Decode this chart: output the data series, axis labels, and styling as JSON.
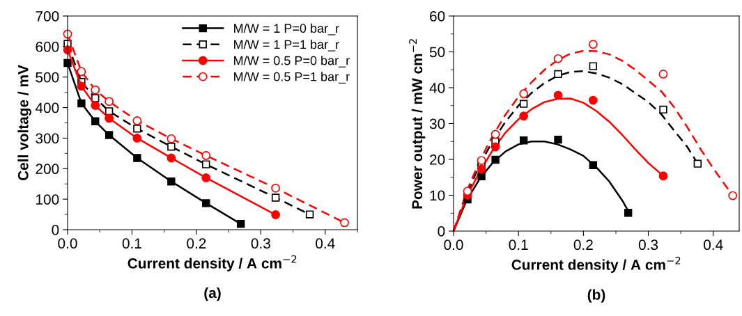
{
  "chart_data": [
    {
      "type": "line",
      "xlabel": "Current density / A cm$^{−2}$",
      "ylabel": "Cell voltage / mV",
      "annotations": [
        "(a)"
      ],
      "xlim": [
        0,
        0.45
      ],
      "ylim": [
        0,
        700
      ],
      "xticks": [
        {
          "value": 0,
          "label": "0.0"
        },
        0.1,
        0.2,
        0.3,
        0.4,
        {
          "value": 0.05,
          "label": null
        },
        {
          "value": 0.15,
          "label": null
        },
        {
          "value": 0.25,
          "label": null
        },
        {
          "value": 0.35,
          "label": null
        },
        {
          "value": 0.45,
          "label": null
        }
      ],
      "yticks": [
        0,
        100,
        200,
        300,
        400,
        500,
        600,
        700,
        {
          "value": 50,
          "label": null
        },
        {
          "value": 150,
          "label": null
        },
        {
          "value": 250,
          "label": null
        },
        {
          "value": 350,
          "label": null
        },
        {
          "value": 450,
          "label": null
        },
        {
          "value": 550,
          "label": null
        },
        {
          "value": 650,
          "label": null
        }
      ],
      "grid": false,
      "legend": "top right",
      "series": [
        {
          "name": "M/W = 1 P=0 bar_r",
          "color": "#000000",
          "marker": "square",
          "line_style": "solid",
          "x": [
            0,
            0.0215,
            0.043,
            0.0645,
            0.108,
            0.161,
            0.215,
            0.269
          ],
          "values": [
            546,
            414,
            355,
            310,
            235,
            158,
            87,
            19
          ]
        },
        {
          "name": "M/W = 1 P=1 bar_r",
          "color": "#000000",
          "marker": "square",
          "line_style": "dashed",
          "x": [
            0,
            0.0215,
            0.043,
            0.0645,
            0.108,
            0.161,
            0.215,
            0.323,
            0.376
          ],
          "values": [
            609,
            484,
            431,
            388,
            331,
            272,
            214,
            105,
            50
          ]
        },
        {
          "name": "M/W = 0.5 P=0 bar_r",
          "color": "#ff0000",
          "marker": "circle",
          "line_style": "solid",
          "x": [
            0,
            0.0215,
            0.043,
            0.0645,
            0.108,
            0.161,
            0.215,
            0.323
          ],
          "values": [
            589,
            470,
            407,
            365,
            300,
            235,
            170,
            49
          ]
        },
        {
          "name": "M/W = 0.5 P=1 bar_r",
          "color": "#ff0000",
          "marker": "circle",
          "line_style": "dashed",
          "x": [
            0,
            0.0215,
            0.043,
            0.0645,
            0.108,
            0.161,
            0.215,
            0.323,
            0.43
          ],
          "values": [
            641,
            518,
            458,
            420,
            357,
            298,
            243,
            136,
            23
          ]
        }
      ]
    },
    {
      "type": "scatter",
      "xlabel": "Current density / A cm$^{−2}$",
      "ylabel": "Power output / mW cm$^{−2}$",
      "annotations": [
        "(b)"
      ],
      "xlim": [
        0,
        0.44
      ],
      "ylim": [
        0,
        60
      ],
      "xticks": [
        {
          "value": 0,
          "label": "0.0"
        },
        0.1,
        0.2,
        0.3,
        0.4,
        {
          "value": 0.05,
          "label": null
        },
        {
          "value": 0.15,
          "label": null
        },
        {
          "value": 0.25,
          "label": null
        },
        {
          "value": 0.35,
          "label": null
        }
      ],
      "yticks": [
        0,
        10,
        20,
        30,
        40,
        50,
        60,
        {
          "value": 5,
          "label": null
        },
        {
          "value": 15,
          "label": null
        },
        {
          "value": 25,
          "label": null
        },
        {
          "value": 35,
          "label": null
        },
        {
          "value": 45,
          "label": null
        },
        {
          "value": 55,
          "label": null
        }
      ],
      "grid": false,
      "series": [
        {
          "type": "line",
          "color": "#000000",
          "marker": "none",
          "line_style": "solid",
          "x": [
            0,
            0.02,
            0.04,
            0.06,
            0.08,
            0.1,
            0.12,
            0.14,
            0.16,
            0.18,
            0.2,
            0.22,
            0.24,
            0.26,
            0.27
          ],
          "values": [
            0,
            8.5,
            14.5,
            19,
            22.2,
            24.2,
            25,
            25,
            24.2,
            22.8,
            21,
            17.8,
            13.8,
            8.5,
            5.3
          ]
        },
        {
          "type": "line",
          "color": "#000000",
          "marker": "none",
          "line_style": "dashed",
          "x": [
            0,
            0.02,
            0.04,
            0.06,
            0.08,
            0.1,
            0.12,
            0.14,
            0.16,
            0.18,
            0.2,
            0.22,
            0.24,
            0.26,
            0.28,
            0.3,
            0.32,
            0.34,
            0.36,
            0.376
          ],
          "values": [
            0,
            10,
            18.5,
            25,
            30.5,
            35,
            38.5,
            41.3,
            43.3,
            44.4,
            44.6,
            44,
            42.8,
            41,
            38.5,
            36,
            32.6,
            28,
            23.5,
            18.8
          ]
        },
        {
          "type": "line",
          "color": "#ff0000",
          "marker": "none",
          "line_style": "solid",
          "x": [
            0,
            0.02,
            0.04,
            0.06,
            0.08,
            0.1,
            0.12,
            0.14,
            0.16,
            0.18,
            0.2,
            0.22,
            0.24,
            0.26,
            0.28,
            0.3,
            0.323
          ],
          "values": [
            0,
            9.5,
            16.5,
            22.5,
            27.5,
            31.2,
            34,
            36,
            36.9,
            37,
            35.8,
            33.5,
            30.5,
            26.8,
            22.8,
            19,
            15.4
          ]
        },
        {
          "type": "line",
          "color": "#ff0000",
          "marker": "none",
          "line_style": "dashed",
          "x": [
            0,
            0.02,
            0.04,
            0.06,
            0.08,
            0.1,
            0.12,
            0.14,
            0.16,
            0.18,
            0.2,
            0.22,
            0.24,
            0.26,
            0.28,
            0.3,
            0.32,
            0.34,
            0.36,
            0.38,
            0.4,
            0.43
          ],
          "values": [
            0,
            11,
            19.5,
            26.5,
            32.5,
            37.5,
            41.5,
            45,
            47.7,
            49.5,
            50.3,
            50.2,
            49.3,
            47.5,
            45,
            42,
            39,
            34.5,
            29,
            23,
            17.5,
            9.9
          ]
        },
        {
          "type": "scatter",
          "color": "#000000",
          "marker": "square",
          "x": [
            0.0215,
            0.043,
            0.0645,
            0.108,
            0.161,
            0.215,
            0.269
          ],
          "values": [
            8.8,
            15.3,
            19.9,
            25.3,
            25.5,
            18.4,
            5.1
          ]
        },
        {
          "type": "scatter",
          "color": "#000000",
          "marker": "square",
          "x": [
            0.043,
            0.0645,
            0.108,
            0.161,
            0.215,
            0.323,
            0.376
          ],
          "values": [
            18.5,
            25.0,
            35.5,
            43.8,
            46.0,
            33.9,
            18.8
          ]
        },
        {
          "type": "scatter",
          "color": "#ff0000",
          "marker": "circle",
          "x": [
            0.0215,
            0.043,
            0.0645,
            0.108,
            0.161,
            0.215,
            0.323
          ],
          "values": [
            10.0,
            17.3,
            23.5,
            32.1,
            37.9,
            36.5,
            15.4
          ]
        },
        {
          "type": "scatter",
          "color": "#ff0000",
          "marker": "circle",
          "x": [
            0.0215,
            0.043,
            0.0645,
            0.108,
            0.161,
            0.215,
            0.323,
            0.43
          ],
          "values": [
            11.1,
            19.7,
            27.0,
            38.3,
            48.1,
            52.1,
            43.8,
            9.9
          ]
        }
      ]
    }
  ]
}
